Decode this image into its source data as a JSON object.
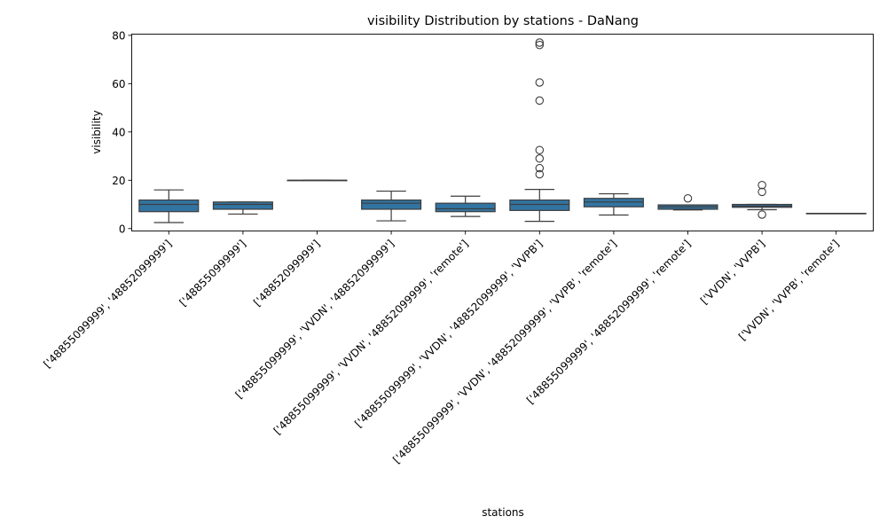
{
  "chart_data": {
    "type": "boxplot",
    "title": "visibility Distribution by stations - DaNang",
    "xlabel": "stations",
    "ylabel": "visibility",
    "ylim": [
      -1,
      80.5
    ],
    "yticks": [
      0,
      20,
      40,
      60,
      80
    ],
    "box_color": "#3274a1",
    "line_color": "#3d3d3d",
    "categories": [
      "['48855099999', '48852099999']",
      "['48855099999']",
      "['48852099999']",
      "['48855099999', 'VVDN', '48852099999']",
      "['48855099999', 'VVDN', '48852099999', 'remote']",
      "['48855099999', 'VVDN', '48852099999', 'VVPB']",
      "['48855099999', 'VVDN', '48852099999', 'VVPB', 'remote']",
      "['48855099999', '48852099999', 'remote']",
      "['VVDN', 'VVPB']",
      "['VVDN', 'VVPB', 'remote']"
    ],
    "boxes": [
      {
        "whislo": 2.5,
        "q1": 7.0,
        "med": 10.0,
        "q3": 11.8,
        "whishi": 16.0,
        "fliers": []
      },
      {
        "whislo": 6.0,
        "q1": 8.0,
        "med": 10.0,
        "q3": 11.0,
        "whishi": 11.0,
        "fliers": []
      },
      {
        "whislo": 20.0,
        "q1": 20.0,
        "med": 20.0,
        "q3": 20.0,
        "whishi": 20.0,
        "fliers": []
      },
      {
        "whislo": 3.2,
        "q1": 8.0,
        "med": 10.5,
        "q3": 11.8,
        "whishi": 15.5,
        "fliers": []
      },
      {
        "whislo": 5.0,
        "q1": 7.0,
        "med": 8.2,
        "q3": 10.5,
        "whishi": 13.4,
        "fliers": []
      },
      {
        "whislo": 3.0,
        "q1": 7.5,
        "med": 10.0,
        "q3": 11.8,
        "whishi": 16.2,
        "fliers": [
          77.0,
          76.0,
          60.5,
          53.0,
          32.5,
          29.0,
          25.0,
          22.5
        ]
      },
      {
        "whislo": 5.6,
        "q1": 9.0,
        "med": 11.0,
        "q3": 12.5,
        "whishi": 14.4,
        "fliers": []
      },
      {
        "whislo": 7.7,
        "q1": 8.0,
        "med": 9.0,
        "q3": 9.8,
        "whishi": 9.8,
        "fliers": [
          12.5
        ]
      },
      {
        "whislo": 7.8,
        "q1": 8.8,
        "med": 9.3,
        "q3": 10.0,
        "whishi": 10.0,
        "fliers": [
          18.0,
          15.2,
          5.8
        ]
      },
      {
        "whislo": 6.3,
        "q1": 6.3,
        "med": 6.3,
        "q3": 6.3,
        "whishi": 6.3,
        "fliers": []
      }
    ]
  }
}
